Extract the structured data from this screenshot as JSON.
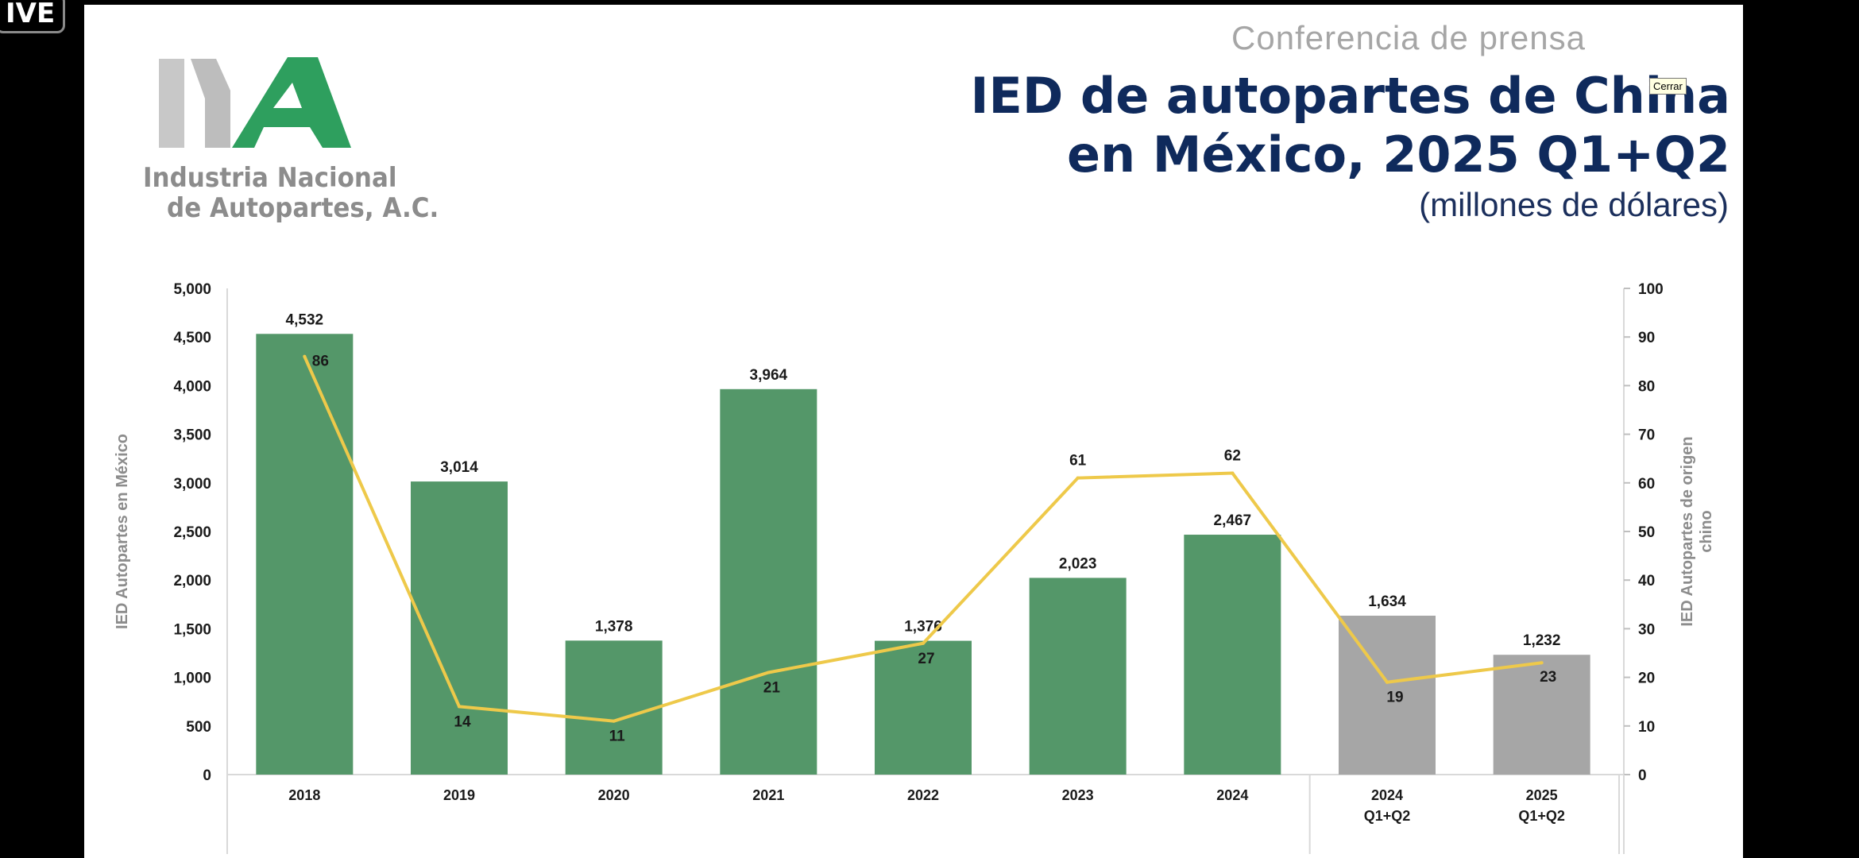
{
  "live_badge": "IVE",
  "logo": {
    "line1": "Industria Nacional",
    "line2": "de Autopartes, A.C.",
    "colors": {
      "gray": "#c8c8c8",
      "green": "#2e9f5e"
    }
  },
  "header": {
    "subtitle": "Conferencia de prensa",
    "title_line1": "IED de autopartes de China",
    "title_line2": "en México, 2025 Q1+Q2",
    "units": "(millones de dólares)"
  },
  "tooltip": "Cerrar",
  "chart_data": {
    "type": "bar",
    "categories": [
      "2018",
      "2019",
      "2020",
      "2021",
      "2022",
      "2023",
      "2024",
      "2024\nQ1+Q2",
      "2025\nQ1+Q2"
    ],
    "series": [
      {
        "type": "bar",
        "axis": "left",
        "values": [
          4532,
          3014,
          1378,
          3964,
          1376,
          2023,
          2467,
          1634,
          1232
        ],
        "labels": [
          "4,532",
          "3,014",
          "1,378",
          "3,964",
          "1,376",
          "2,023",
          "2,467",
          "1,634",
          "1,232"
        ],
        "colors": [
          "#549769",
          "#549769",
          "#549769",
          "#549769",
          "#549769",
          "#549769",
          "#549769",
          "#a6a6a6",
          "#a6a6a6"
        ]
      },
      {
        "type": "line",
        "axis": "right",
        "values": [
          86,
          14,
          11,
          21,
          27,
          61,
          62,
          19,
          23
        ],
        "labels": [
          "86",
          "14",
          "11",
          "21",
          "27",
          "61",
          "62",
          "19",
          "23"
        ],
        "color": "#eec94a"
      }
    ],
    "ylabel": "IED Autopartes en México",
    "y2label_lines": [
      "IED Autopartes de origen",
      "chino"
    ],
    "ylim": [
      0,
      5000
    ],
    "y2lim": [
      0,
      100
    ],
    "yticks": [
      "0",
      "500",
      "1,000",
      "1,500",
      "2,000",
      "2,500",
      "3,000",
      "3,500",
      "4,000",
      "4,500",
      "5,000"
    ],
    "y2ticks": [
      "0",
      "10",
      "20",
      "30",
      "40",
      "50",
      "60",
      "70",
      "80",
      "90",
      "100"
    ],
    "legend": "none",
    "grid": false
  }
}
